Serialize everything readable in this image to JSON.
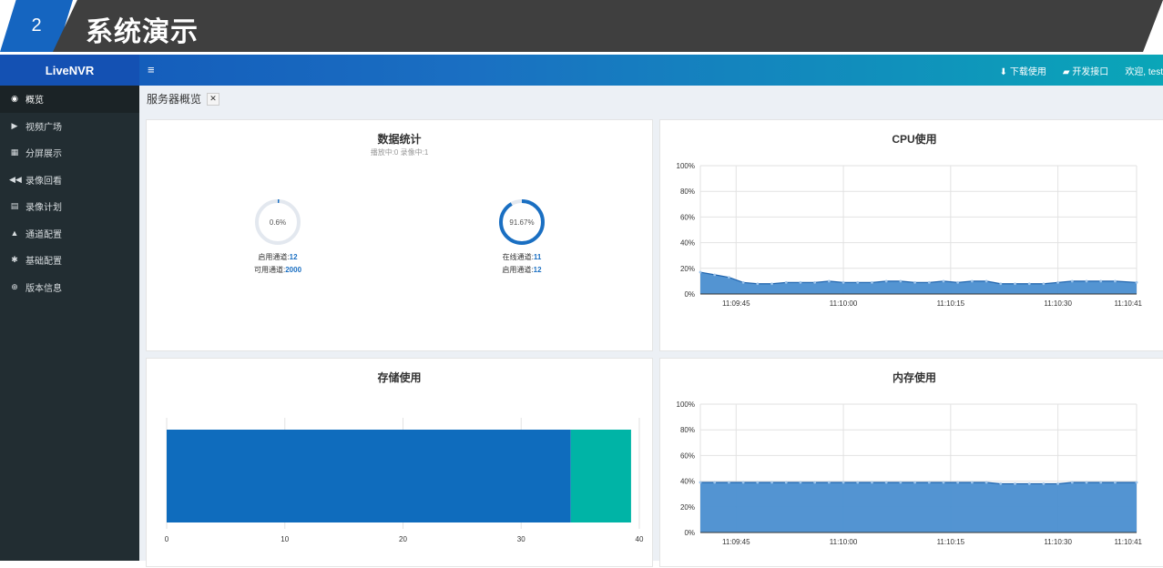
{
  "slide": {
    "number": "2",
    "title": "系统演示"
  },
  "app": {
    "brand": "LiveNVR",
    "menu_icon": "≡"
  },
  "topbar": {
    "download": "下载使用",
    "api": "开发接口",
    "welcome": "欢迎, test"
  },
  "sidebar": {
    "items": [
      {
        "label": "概览",
        "icon": "dashboard-icon",
        "glyph": "◉",
        "active": true
      },
      {
        "label": "视频广场",
        "icon": "play-icon",
        "glyph": "▶"
      },
      {
        "label": "分屏展示",
        "icon": "grid-icon",
        "glyph": "▦"
      },
      {
        "label": "录像回看",
        "icon": "backward-icon",
        "glyph": "◀◀"
      },
      {
        "label": "录像计划",
        "icon": "calendar-icon",
        "glyph": "▤"
      },
      {
        "label": "通道配置",
        "icon": "road-icon",
        "glyph": "▲"
      },
      {
        "label": "基础配置",
        "icon": "gear-icon",
        "glyph": "✱"
      },
      {
        "label": "版本信息",
        "icon": "globe-icon",
        "glyph": "⊕"
      }
    ]
  },
  "breadcrumb": {
    "title": "服务器概览"
  },
  "stats": {
    "title": "数据统计",
    "subtitle": "播放中:0  录像中:1",
    "gauge1": {
      "percent": 0.6,
      "label": "0.6%",
      "line1_label": "启用通道:",
      "line1_value": "12",
      "line2_label": "可用通道:",
      "line2_value": "2000"
    },
    "gauge2": {
      "percent": 91.67,
      "label": "91.67%",
      "line1_label": "在线通道:",
      "line1_value": "11",
      "line2_label": "启用通道:",
      "line2_value": "12"
    }
  },
  "colors": {
    "accent": "#1a6fc2",
    "teal": "#0ab3a6",
    "area": "#4a8ed0"
  },
  "chart_data": [
    {
      "type": "area",
      "title": "CPU使用",
      "x_ticks": [
        "11:09:45",
        "11:10:00",
        "11:10:15",
        "11:10:30",
        "11:10:41"
      ],
      "y_ticks": [
        "0%",
        "20%",
        "40%",
        "60%",
        "80%",
        "100%"
      ],
      "ylim": [
        0,
        100
      ],
      "x_range": [
        "11:09:40",
        "11:10:41"
      ],
      "x": [
        "11:09:40",
        "11:09:42",
        "11:09:44",
        "11:09:46",
        "11:09:48",
        "11:09:50",
        "11:09:52",
        "11:09:54",
        "11:09:56",
        "11:09:58",
        "11:10:00",
        "11:10:02",
        "11:10:04",
        "11:10:06",
        "11:10:08",
        "11:10:10",
        "11:10:12",
        "11:10:14",
        "11:10:16",
        "11:10:18",
        "11:10:20",
        "11:10:22",
        "11:10:24",
        "11:10:26",
        "11:10:28",
        "11:10:30",
        "11:10:32",
        "11:10:34",
        "11:10:36",
        "11:10:38",
        "11:10:41"
      ],
      "values": [
        17,
        15,
        13,
        9,
        8,
        8,
        9,
        9,
        9,
        10,
        9,
        9,
        9,
        10,
        10,
        9,
        9,
        10,
        9,
        10,
        10,
        8,
        8,
        8,
        8,
        9,
        10,
        10,
        10,
        10,
        9
      ],
      "grid": true
    },
    {
      "type": "bar",
      "title": "存储使用",
      "orientation": "horizontal",
      "stacked": true,
      "x_ticks": [
        "0",
        "10",
        "20",
        "30",
        "40"
      ],
      "xlim": [
        0,
        40
      ],
      "series": [
        {
          "values": [
            34.2
          ],
          "color": "#0f6cbd"
        },
        {
          "values": [
            5.1
          ],
          "color": "#00b4a6"
        }
      ]
    },
    {
      "type": "area",
      "title": "内存使用",
      "x_ticks": [
        "11:09:45",
        "11:10:00",
        "11:10:15",
        "11:10:30",
        "11:10:41"
      ],
      "y_ticks": [
        "0%",
        "20%",
        "40%",
        "60%",
        "80%",
        "100%"
      ],
      "ylim": [
        0,
        100
      ],
      "x_range": [
        "11:09:40",
        "11:10:41"
      ],
      "x": [
        "11:09:40",
        "11:09:42",
        "11:09:44",
        "11:09:46",
        "11:09:48",
        "11:09:50",
        "11:09:52",
        "11:09:54",
        "11:09:56",
        "11:09:58",
        "11:10:00",
        "11:10:02",
        "11:10:04",
        "11:10:06",
        "11:10:08",
        "11:10:10",
        "11:10:12",
        "11:10:14",
        "11:10:16",
        "11:10:18",
        "11:10:20",
        "11:10:22",
        "11:10:24",
        "11:10:26",
        "11:10:28",
        "11:10:30",
        "11:10:32",
        "11:10:34",
        "11:10:36",
        "11:10:38",
        "11:10:41"
      ],
      "values": [
        39,
        39,
        39,
        39,
        39,
        39,
        39,
        39,
        39,
        39,
        39,
        39,
        39,
        39,
        39,
        39,
        39,
        39,
        39,
        39,
        39,
        38,
        38,
        38,
        38,
        38,
        39,
        39,
        39,
        39,
        39
      ],
      "grid": true
    }
  ]
}
